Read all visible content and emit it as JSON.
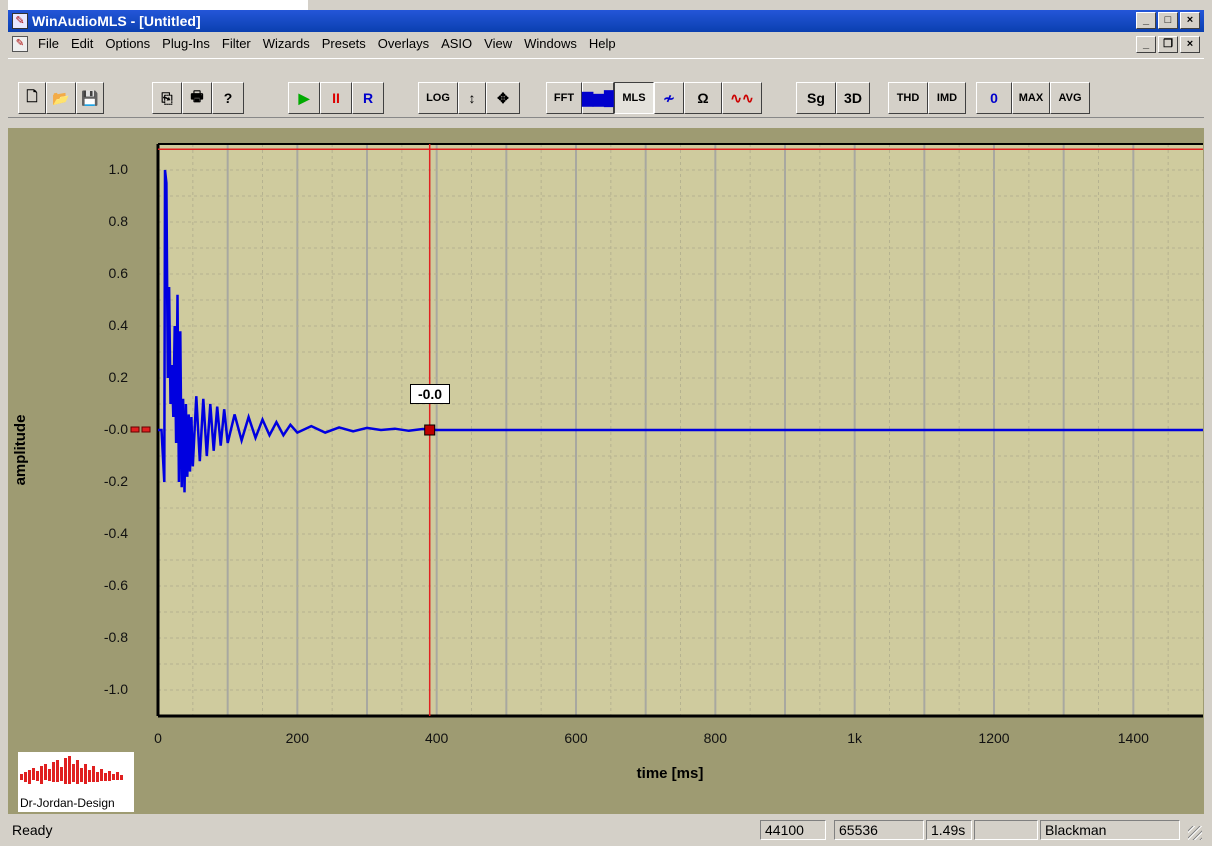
{
  "window": {
    "title": "WinAudioMLS - [Untitled]"
  },
  "menu": {
    "items": [
      "File",
      "Edit",
      "Options",
      "Plug-Ins",
      "Filter",
      "Wizards",
      "Presets",
      "Overlays",
      "ASIO",
      "View",
      "Windows",
      "Help"
    ]
  },
  "toolbar": {
    "buttons": [
      {
        "name": "new-button",
        "label": "🗋"
      },
      {
        "name": "open-button",
        "label": "📂"
      },
      {
        "name": "save-button",
        "label": "💾"
      },
      {
        "name": "copy-button",
        "label": "⎘"
      },
      {
        "name": "print-button",
        "label": "🖶"
      },
      {
        "name": "help-button",
        "label": "?"
      },
      {
        "name": "play-button",
        "label": "▶"
      },
      {
        "name": "pause-button",
        "label": "II"
      },
      {
        "name": "record-button",
        "label": "R"
      },
      {
        "name": "log-button",
        "label": "LOG"
      },
      {
        "name": "vertical-zoom-button",
        "label": "↕"
      },
      {
        "name": "pan-button",
        "label": "✥"
      },
      {
        "name": "fft-button",
        "label": "FFT"
      },
      {
        "name": "spectrum-button",
        "label": "▇▆█"
      },
      {
        "name": "mls-button",
        "label": "MLS"
      },
      {
        "name": "wave-button",
        "label": "≁"
      },
      {
        "name": "impedance-button",
        "label": "Ω"
      },
      {
        "name": "overlay-button",
        "label": "∿∿"
      },
      {
        "name": "sonogram-button",
        "label": "Sg"
      },
      {
        "name": "3d-button",
        "label": "3D"
      },
      {
        "name": "thd-button",
        "label": "THD"
      },
      {
        "name": "imd-button",
        "label": "IMD"
      },
      {
        "name": "zero-button",
        "label": "0"
      },
      {
        "name": "max-button",
        "label": "MAX"
      },
      {
        "name": "avg-button",
        "label": "AVG"
      }
    ]
  },
  "plot": {
    "ylabel": "amplitude",
    "xlabel": "time [ms]",
    "cursor_value": "-0.0",
    "yticks": [
      "1.0",
      "0.8",
      "0.6",
      "0.4",
      "0.2",
      "-0.0",
      "-0.2",
      "-0.4",
      "-0.6",
      "-0.8",
      "-1.0"
    ],
    "xticks": [
      "0",
      "200",
      "400",
      "600",
      "800",
      "1k",
      "1200",
      "1400"
    ]
  },
  "chart_data": {
    "type": "line",
    "xlabel": "time [ms]",
    "ylabel": "amplitude",
    "xlim": [
      0,
      1500
    ],
    "ylim": [
      -1.1,
      1.1
    ],
    "cursor_x": 390,
    "cursor_y": 0.0,
    "series": [
      {
        "x": [
          0,
          5,
          9,
          10,
          12,
          14,
          16,
          18,
          20,
          22,
          24,
          26,
          28,
          30,
          32,
          34,
          36,
          38,
          40,
          42,
          44,
          46,
          48,
          50,
          55,
          60,
          65,
          70,
          75,
          80,
          85,
          90,
          95,
          100,
          110,
          120,
          130,
          140,
          150,
          160,
          170,
          180,
          190,
          200,
          220,
          240,
          260,
          280,
          300,
          320,
          340,
          360,
          380,
          400,
          420,
          450,
          500,
          600,
          800,
          1000,
          1200,
          1500
        ],
        "y": [
          0,
          0,
          -0.2,
          1.0,
          0.95,
          0.2,
          0.55,
          0.1,
          0.25,
          0.05,
          0.4,
          -0.05,
          0.52,
          -0.2,
          0.38,
          -0.22,
          0.12,
          -0.24,
          0.1,
          -0.18,
          0.06,
          -0.16,
          0.05,
          -0.14,
          0.13,
          -0.12,
          0.12,
          -0.1,
          0.1,
          -0.08,
          0.09,
          -0.06,
          0.08,
          -0.05,
          0.06,
          -0.04,
          0.05,
          -0.03,
          0.04,
          -0.02,
          0.03,
          -0.02,
          0.02,
          -0.01,
          0.015,
          -0.01,
          0.01,
          -0.005,
          0.008,
          0,
          0.005,
          -0.003,
          0.004,
          0,
          0,
          0,
          0,
          0,
          0,
          0,
          0,
          0
        ],
        "color": "#0000e0"
      }
    ],
    "grid": true,
    "reference_line_y": 1.08
  },
  "status": {
    "ready": "Ready",
    "sample_rate": "44100",
    "length": "65536",
    "duration": "1.49s",
    "empty": "",
    "window_fn": "Blackman"
  },
  "logo": {
    "text": "Dr-Jordan-Design"
  },
  "colors": {
    "plot_bg": "#cfcb9e",
    "panel_bg": "#9e9b72",
    "trace": "#0000e0",
    "cursor": "#ff0000"
  }
}
